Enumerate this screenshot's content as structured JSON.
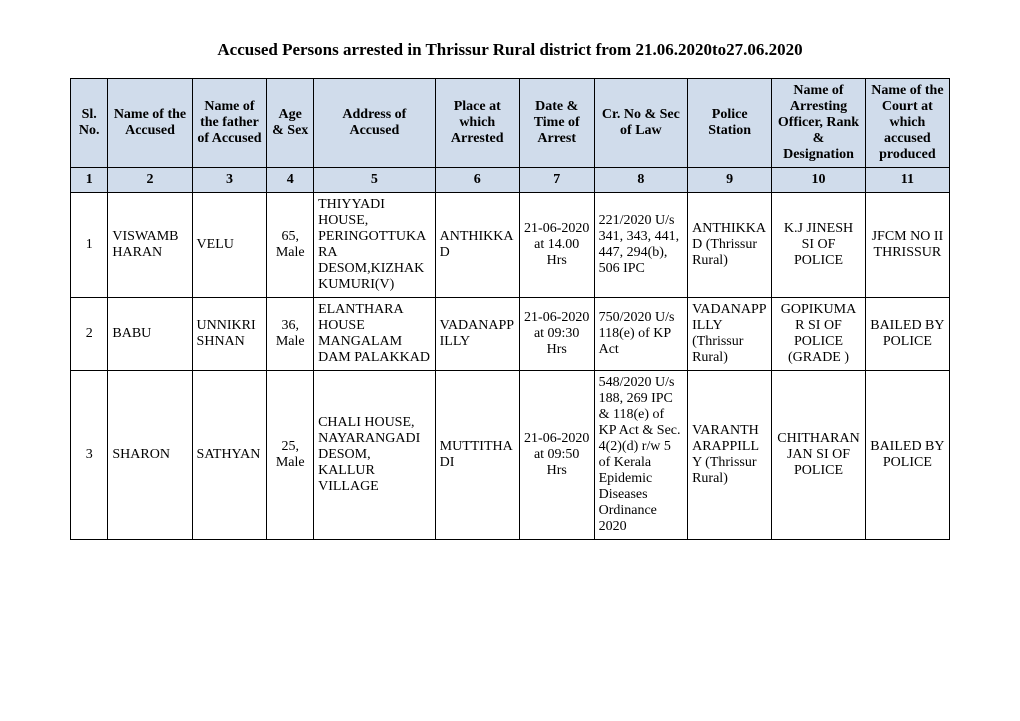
{
  "title": "Accused Persons arrested in   Thrissur Rural   district from  21.06.2020to27.06.2020",
  "headers": {
    "c1": "Sl. No.",
    "c2": "Name of the Accused",
    "c3": "Name of the father of Accused",
    "c4": "Age & Sex",
    "c5": "Address of Accused",
    "c6": "Place at which Arrested",
    "c7": "Date & Time of Arrest",
    "c8": "Cr. No & Sec of Law",
    "c9": "Police Station",
    "c10": "Name of Arresting Officer, Rank & Designation",
    "c11": "Name of the Court at which accused produced"
  },
  "colnums": {
    "c1": "1",
    "c2": "2",
    "c3": "3",
    "c4": "4",
    "c5": "5",
    "c6": "6",
    "c7": "7",
    "c8": "8",
    "c9": "9",
    "c10": "10",
    "c11": "11"
  },
  "rows": [
    {
      "sl": "1",
      "name": "VISWAMBHARAN",
      "father": "VELU",
      "age_sex": "65, Male",
      "address": "THIYYADI HOUSE, PERINGOTTUKARA DESOM,KIZHAKKUMURI(V)",
      "place": "ANTHIKKAD",
      "datetime": "21-06-2020 at 14.00 Hrs",
      "crno": "221/2020 U/s 341, 343, 441, 447, 294(b), 506 IPC",
      "station": "ANTHIKKAD (Thrissur Rural)",
      "officer": "K.J JINESH SI OF POLICE",
      "court": "JFCM NO II THRISSUR"
    },
    {
      "sl": "2",
      "name": "BABU",
      "father": "UNNIKRISHNAN",
      "age_sex": "36, Male",
      "address": "ELANTHARA HOUSE MANGALAM DAM PALAKKAD",
      "place": "VADANAPPILLY",
      "datetime": "21-06-2020 at 09:30 Hrs",
      "crno": "750/2020 U/s 118(e) of KP Act",
      "station": "VADANAPPILLY (Thrissur Rural)",
      "officer": "GOPIKUMAR SI OF POLICE (GRADE )",
      "court": "BAILED BY POLICE"
    },
    {
      "sl": "3",
      "name": "SHARON",
      "father": "SATHYAN",
      "age_sex": "25, Male",
      "address": "CHALI HOUSE, NAYARANGADI DESOM, KALLUR VILLAGE",
      "place": "MUTTITHADI",
      "datetime": "21-06-2020 at 09:50 Hrs",
      "crno": "548/2020 U/s 188, 269 IPC & 118(e) of KP Act & Sec. 4(2)(d) r/w 5 of Kerala Epidemic Diseases Ordinance 2020",
      "station": "VARANTHARAPPILLY (Thrissur Rural)",
      "officer": "CHITHARANJAN SI OF POLICE",
      "court": "BAILED BY POLICE"
    }
  ],
  "style": {
    "header_bg": "#d0dceb",
    "border_color": "#000000",
    "font_family": "Times New Roman",
    "title_fontsize": 17,
    "cell_fontsize": 14
  }
}
